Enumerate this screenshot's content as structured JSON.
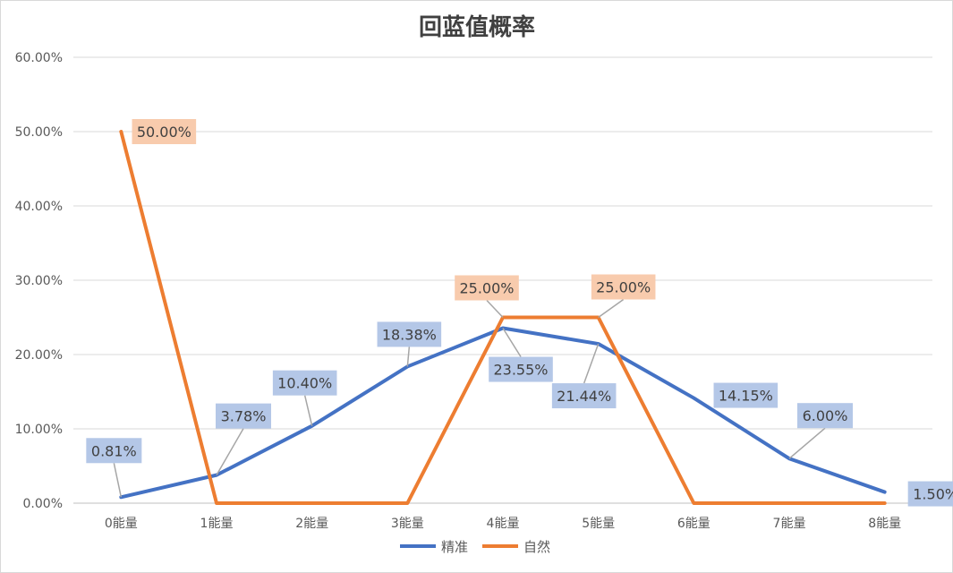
{
  "chart_data": {
    "type": "line",
    "title": "回蓝值概率",
    "categories": [
      "0能量",
      "1能量",
      "2能量",
      "3能量",
      "4能量",
      "5能量",
      "6能量",
      "7能量",
      "8能量"
    ],
    "ylim": [
      0,
      60
    ],
    "yticks": [
      "0.00%",
      "10.00%",
      "20.00%",
      "30.00%",
      "40.00%",
      "50.00%",
      "60.00%"
    ],
    "grid": true,
    "legend_position": "bottom",
    "series": [
      {
        "name": "精准",
        "color": "#4472C4",
        "label_bg": "#B4C7E7",
        "values": [
          0.81,
          3.78,
          10.4,
          18.38,
          23.55,
          21.44,
          14.15,
          6.0,
          1.5
        ],
        "labels": [
          "0.81%",
          "3.78%",
          "10.40%",
          "18.38%",
          "23.55%",
          "21.44%",
          "14.15%",
          "6.00%",
          "1.50%"
        ]
      },
      {
        "name": "自然",
        "color": "#ED7D31",
        "label_bg": "#F8CBAD",
        "values": [
          50,
          0,
          0,
          0,
          25,
          25,
          0,
          0,
          0
        ],
        "labels": [
          "50.00%",
          "",
          "",
          "",
          "25.00%",
          "25.00%",
          "",
          "",
          ""
        ]
      }
    ]
  }
}
